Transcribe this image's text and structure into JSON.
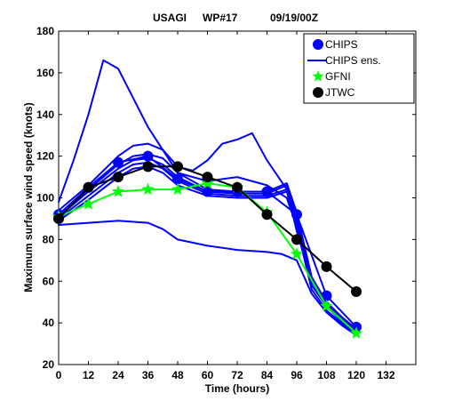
{
  "chart_data": {
    "type": "line",
    "title_parts": [
      "USAGI",
      "WP#17",
      "09/19/00Z"
    ],
    "xlabel": "Time (hours)",
    "ylabel": "Maximum surface wind speed (knots)",
    "xlim": [
      0,
      144
    ],
    "ylim": [
      20,
      180
    ],
    "xticks": [
      "0",
      "12",
      "24",
      "36",
      "48",
      "60",
      "72",
      "84",
      "96",
      "108",
      "120",
      "132"
    ],
    "yticks": [
      "20",
      "40",
      "60",
      "80",
      "100",
      "120",
      "140",
      "160",
      "180"
    ],
    "grid": false,
    "legend_position": "top-right",
    "legend": [
      {
        "label": "CHIPS",
        "color": "#0000ff",
        "marker": "circle"
      },
      {
        "label": "CHIPS ens.",
        "color": "#0000ff",
        "marker": "none"
      },
      {
        "label": "GFNI",
        "color": "#00ff00",
        "marker": "star"
      },
      {
        "label": "JTWC",
        "color": "#000000",
        "marker": "circle"
      }
    ],
    "series": [
      {
        "name": "CHIPS ens.",
        "color": "#0000ff",
        "marker": "none",
        "x": [
          0,
          6,
          12,
          18,
          24,
          36,
          48,
          60,
          72,
          84,
          92,
          96,
          102,
          108,
          114,
          120
        ],
        "y": [
          98,
          118,
          140,
          166,
          162,
          134,
          112,
          108,
          110,
          106,
          100,
          86,
          60,
          48,
          42,
          36
        ]
      },
      {
        "name": "CHIPS ens.",
        "color": "#0000ff",
        "marker": "none",
        "x": [
          0,
          6,
          12,
          18,
          24,
          30,
          36,
          42,
          48,
          54,
          60,
          66,
          72,
          78,
          84,
          92,
          96,
          102,
          108,
          114,
          120
        ],
        "y": [
          94,
          100,
          106,
          113,
          120,
          125,
          126,
          123,
          115,
          113,
          118,
          126,
          128,
          131,
          118,
          104,
          84,
          60,
          48,
          42,
          36
        ]
      },
      {
        "name": "CHIPS ens.",
        "color": "#0000ff",
        "marker": "none",
        "x": [
          0,
          12,
          24,
          30,
          36,
          42,
          48,
          60,
          72,
          84,
          92,
          96,
          102,
          108,
          114,
          120
        ],
        "y": [
          92,
          104,
          116,
          120,
          121,
          119,
          112,
          104,
          103,
          103,
          107,
          93,
          62,
          50,
          43,
          37
        ]
      },
      {
        "name": "CHIPS ens.",
        "color": "#0000ff",
        "marker": "none",
        "x": [
          0,
          12,
          24,
          30,
          36,
          42,
          48,
          60,
          72,
          84,
          92,
          96,
          102,
          108,
          114,
          120
        ],
        "y": [
          91,
          103,
          114,
          118,
          119,
          116,
          110,
          103,
          102,
          102,
          106,
          90,
          60,
          49,
          42,
          36
        ]
      },
      {
        "name": "CHIPS ens.",
        "color": "#0000ff",
        "marker": "none",
        "x": [
          0,
          12,
          24,
          30,
          36,
          42,
          48,
          60,
          72,
          84,
          92,
          96,
          102,
          108,
          114,
          120
        ],
        "y": [
          90,
          101,
          112,
          116,
          117,
          114,
          108,
          102,
          101,
          101,
          104,
          88,
          58,
          48,
          41,
          35
        ]
      },
      {
        "name": "CHIPS ens.",
        "color": "#0000ff",
        "marker": "none",
        "x": [
          0,
          12,
          24,
          30,
          36,
          42,
          48,
          60,
          72,
          84,
          92,
          96,
          102,
          108,
          114,
          120
        ],
        "y": [
          89,
          99,
          110,
          114,
          115,
          112,
          106,
          101,
          100,
          100,
          103,
          86,
          56,
          46,
          40,
          34
        ]
      },
      {
        "name": "CHIPS ens.",
        "color": "#0000ff",
        "marker": "none",
        "x": [
          0,
          12,
          24,
          36,
          42,
          48,
          60,
          72,
          84,
          90,
          96,
          102,
          108,
          114,
          120
        ],
        "y": [
          87,
          88,
          89,
          88,
          85,
          80,
          77,
          75,
          74,
          73,
          70,
          54,
          45,
          39,
          34
        ]
      },
      {
        "name": "CHIPS",
        "color": "#0000ff",
        "marker": "circle",
        "x": [
          0,
          12,
          24,
          36,
          48,
          60,
          72,
          84,
          96,
          108,
          120
        ],
        "y": [
          92,
          105,
          117,
          120,
          109,
          103,
          103,
          103,
          92,
          53,
          38
        ]
      },
      {
        "name": "GFNI",
        "color": "#00ff00",
        "marker": "star",
        "x": [
          0,
          12,
          24,
          36,
          48,
          60,
          72,
          84,
          96,
          108,
          120
        ],
        "y": [
          91,
          97,
          103,
          104,
          104,
          107,
          105,
          93,
          73,
          48,
          35
        ]
      },
      {
        "name": "JTWC",
        "color": "#000000",
        "marker": "circle",
        "x": [
          0,
          12,
          24,
          36,
          48,
          60,
          72,
          84,
          96,
          108,
          120
        ],
        "y": [
          90,
          105,
          110,
          115,
          115,
          110,
          105,
          92,
          80,
          67,
          55
        ]
      }
    ]
  }
}
